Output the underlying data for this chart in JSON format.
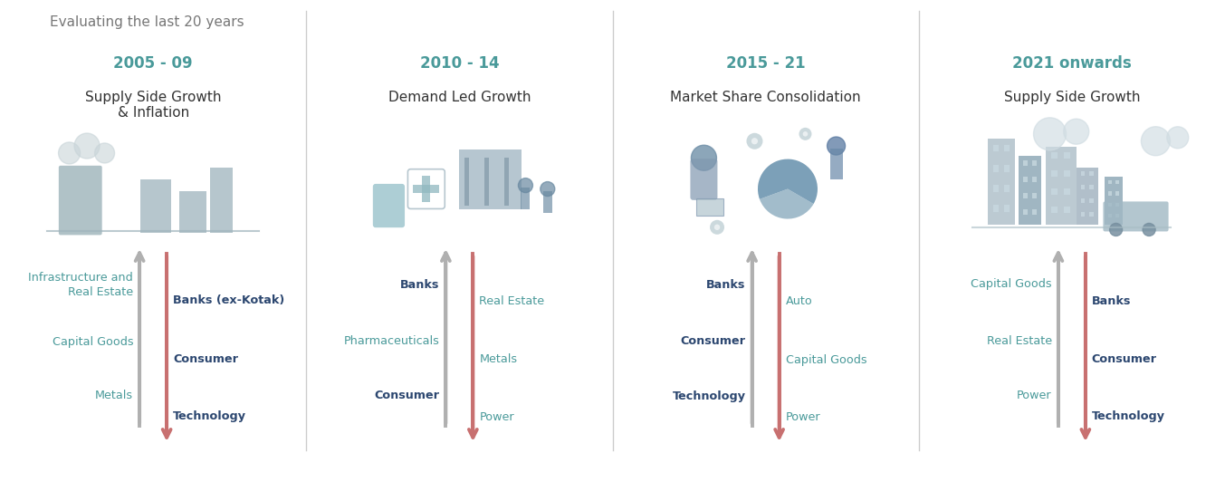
{
  "title": "Evaluating the last 20 years",
  "title_color": "#777777",
  "title_fontsize": 11,
  "background_color": "#ffffff",
  "divider_color": "#cccccc",
  "periods": [
    {
      "years": "2005 - 09",
      "theme": "Supply Side Growth\n& Inflation",
      "years_color": "#4a9a9a",
      "theme_color": "#333333",
      "theme_fontsize": 11,
      "years_fontsize": 12,
      "up_arrow_color": "#b0b0b0",
      "down_arrow_color": "#c87070",
      "up_labels": [
        "Infrastructure and\nReal Estate",
        "Capital Goods",
        "Metals"
      ],
      "down_labels": [
        "Banks (ex-Kotak)",
        "Consumer",
        "Technology"
      ],
      "up_label_colors": [
        "#4a9a9a",
        "#4a9a9a",
        "#4a9a9a"
      ],
      "down_label_colors": [
        "#2c4770",
        "#2c4770",
        "#2c4770"
      ],
      "up_label_bold": [
        false,
        false,
        false
      ],
      "down_label_bold": [
        true,
        true,
        true
      ]
    },
    {
      "years": "2010 - 14",
      "theme": "Demand Led Growth",
      "years_color": "#4a9a9a",
      "theme_color": "#333333",
      "theme_fontsize": 11,
      "years_fontsize": 12,
      "up_arrow_color": "#b0b0b0",
      "down_arrow_color": "#c87070",
      "up_labels": [
        "Banks",
        "Pharmaceuticals",
        "Consumer"
      ],
      "down_labels": [
        "Real Estate",
        "Metals",
        "Power"
      ],
      "up_label_colors": [
        "#2c4770",
        "#4a9a9a",
        "#2c4770"
      ],
      "down_label_colors": [
        "#4a9a9a",
        "#4a9a9a",
        "#4a9a9a"
      ],
      "up_label_bold": [
        true,
        false,
        true
      ],
      "down_label_bold": [
        false,
        false,
        false
      ]
    },
    {
      "years": "2015 - 21",
      "theme": "Market Share Consolidation",
      "years_color": "#4a9a9a",
      "theme_color": "#333333",
      "theme_fontsize": 11,
      "years_fontsize": 12,
      "up_arrow_color": "#b0b0b0",
      "down_arrow_color": "#c87070",
      "up_labels": [
        "Banks",
        "Consumer",
        "Technology"
      ],
      "down_labels": [
        "Auto",
        "Capital Goods",
        "Power"
      ],
      "up_label_colors": [
        "#2c4770",
        "#2c4770",
        "#2c4770"
      ],
      "down_label_colors": [
        "#4a9a9a",
        "#4a9a9a",
        "#4a9a9a"
      ],
      "up_label_bold": [
        true,
        true,
        true
      ],
      "down_label_bold": [
        false,
        false,
        false
      ]
    },
    {
      "years": "2021 onwards",
      "theme": "Supply Side Growth",
      "years_color": "#4a9a9a",
      "theme_color": "#333333",
      "theme_fontsize": 11,
      "years_fontsize": 12,
      "up_arrow_color": "#b0b0b0",
      "down_arrow_color": "#c87070",
      "up_labels": [
        "Capital Goods",
        "Real Estate",
        "Power"
      ],
      "down_labels": [
        "Banks",
        "Consumer",
        "Technology"
      ],
      "up_label_colors": [
        "#4a9a9a",
        "#4a9a9a",
        "#4a9a9a"
      ],
      "down_label_colors": [
        "#2c4770",
        "#2c4770",
        "#2c4770"
      ],
      "up_label_bold": [
        false,
        false,
        false
      ],
      "down_label_bold": [
        true,
        true,
        true
      ]
    }
  ],
  "illus_colors": [
    [
      "#8fb0b8",
      "#b0c8d0",
      "#c8d8e0",
      "#90a8b0"
    ],
    [
      "#8fb0b8",
      "#b0c8d0",
      "#c8d8e0",
      "#90a8b0"
    ],
    [
      "#8fb0b8",
      "#b0c8d0",
      "#c8d8e0",
      "#90a8b0"
    ],
    [
      "#8fb0b8",
      "#b0c8d0",
      "#c8d8e0",
      "#90a8b0"
    ]
  ]
}
